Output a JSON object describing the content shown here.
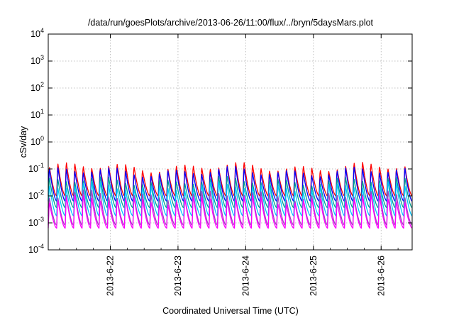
{
  "chart_data": {
    "type": "line",
    "title": "/data/run/goesPlots/archive/2013-06-26/11:00/flux/../bryn/5daysMars.plot",
    "xlabel": "Coordinated Universal Time (UTC)",
    "ylabel": "cSv/day",
    "yscale": "log",
    "ylim": [
      0.0001,
      10000
    ],
    "xlim": [
      "2013-06-21T02:00",
      "2013-06-26T11:00"
    ],
    "grid": true,
    "xticks": [
      "2013-6-22",
      "2013-6-23",
      "2013-6-24",
      "2013-6-25",
      "2013-6-26"
    ],
    "yticks": [
      {
        "base": "10",
        "exp": "-4"
      },
      {
        "base": "10",
        "exp": "-3"
      },
      {
        "base": "10",
        "exp": "-2"
      },
      {
        "base": "10",
        "exp": "-1"
      },
      {
        "base": "10",
        "exp": "0"
      },
      {
        "base": "10",
        "exp": "1"
      },
      {
        "base": "10",
        "exp": "2"
      },
      {
        "base": "10",
        "exp": "3"
      },
      {
        "base": "10",
        "exp": "4"
      }
    ],
    "cycle_hours": 3,
    "series": [
      {
        "color": "#ff0000",
        "peak": 0.13,
        "trough": 0.011
      },
      {
        "color": "#0000ff",
        "peak": 0.09,
        "trough": 0.007
      },
      {
        "color": "#00a090",
        "peak": 0.04,
        "trough": 0.004
      },
      {
        "color": "#00c8ff",
        "peak": 0.025,
        "trough": 0.002
      },
      {
        "color": "#a040c0",
        "peak": 0.012,
        "trough": 0.0009
      },
      {
        "color": "#ff00ff",
        "peak": 0.008,
        "trough": 0.0007
      }
    ]
  }
}
